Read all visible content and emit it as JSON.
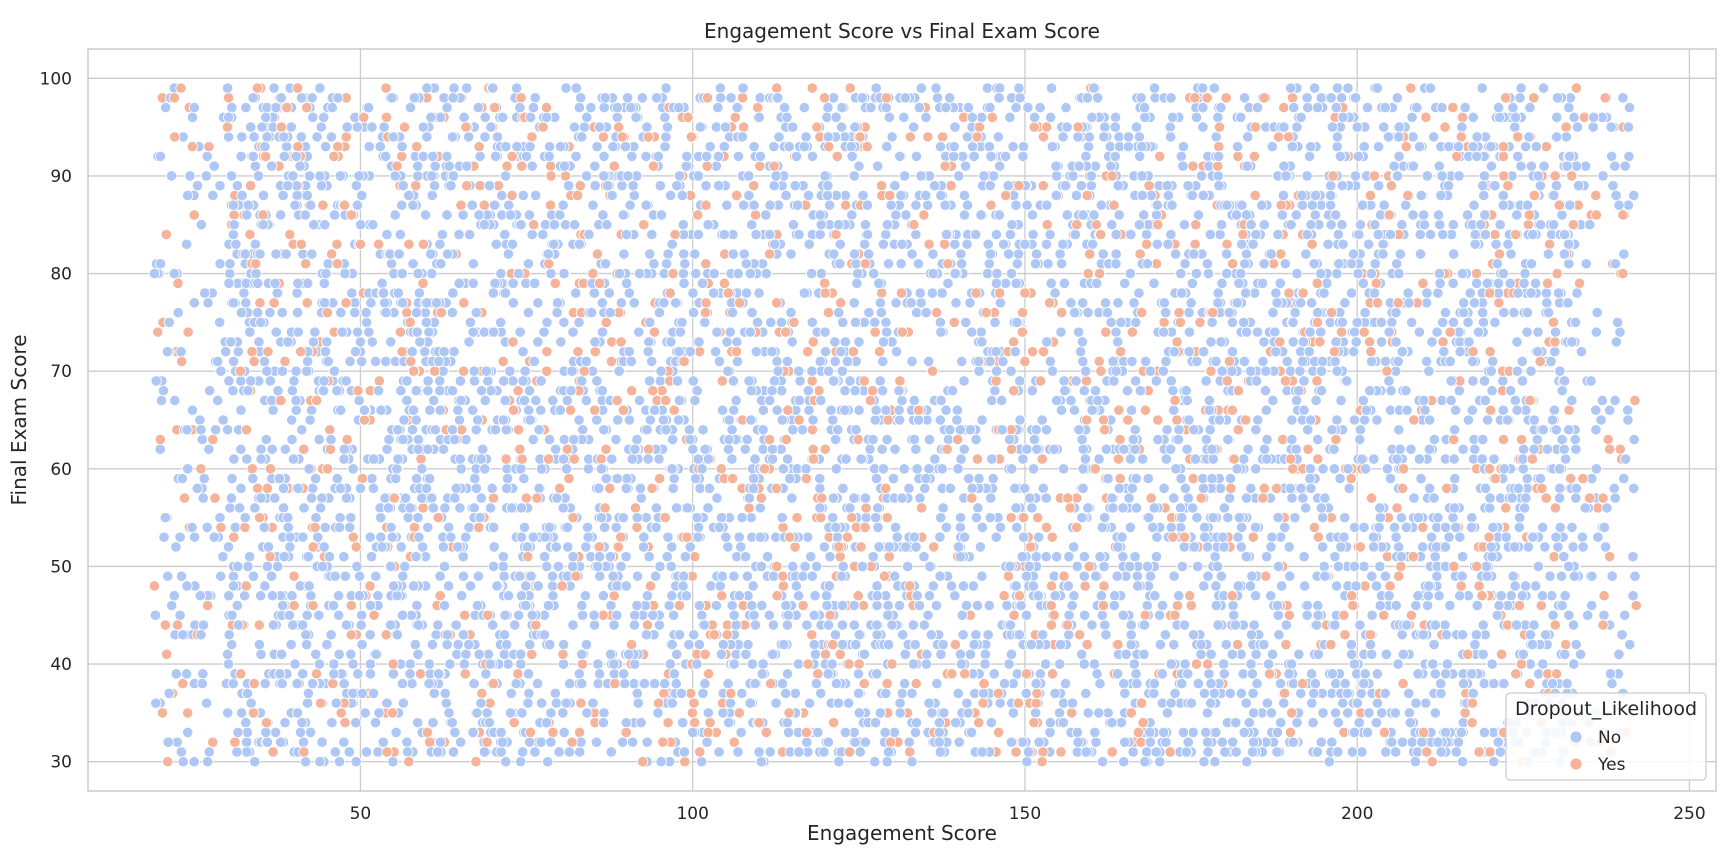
{
  "chart_data": {
    "type": "scatter",
    "title": "Engagement Score vs Final Exam Score",
    "xlabel": "Engagement Score",
    "ylabel": "Final Exam Score",
    "xlim": [
      9,
      254
    ],
    "ylim": [
      27,
      103
    ],
    "x_ticks": [
      50,
      100,
      150,
      200,
      250
    ],
    "y_ticks": [
      30,
      40,
      50,
      60,
      70,
      80,
      90,
      100
    ],
    "grid": true,
    "legend": {
      "title": "Dropout_Likelihood",
      "placement": "bottom-right",
      "entries": [
        {
          "label": "No",
          "color": "#aec7f5"
        },
        {
          "label": "Yes",
          "color": "#f5b49a"
        }
      ]
    },
    "x_range_observed": [
      19,
      242
    ],
    "y_range_observed": [
      30,
      99
    ],
    "point_count_estimate": 9000,
    "series": [
      {
        "name": "No",
        "color": "#aec7f5",
        "points": [
          [
            19,
            80
          ],
          [
            21,
            49
          ],
          [
            22,
            47
          ],
          [
            23,
            72
          ],
          [
            24,
            88
          ],
          [
            24,
            60
          ],
          [
            24,
            33
          ],
          [
            25,
            97
          ],
          [
            25,
            77
          ],
          [
            26,
            64
          ],
          [
            26,
            43
          ],
          [
            27,
            30
          ],
          [
            28,
            91
          ],
          [
            28,
            53
          ],
          [
            29,
            70
          ],
          [
            30,
            99
          ],
          [
            30,
            41
          ],
          [
            31,
            85
          ],
          [
            32,
            62
          ],
          [
            33,
            37
          ],
          [
            34,
            94
          ],
          [
            35,
            75
          ],
          [
            36,
            50
          ],
          [
            37,
            99
          ],
          [
            38,
            32
          ],
          [
            40,
            69
          ],
          [
            42,
            88
          ],
          [
            44,
            56
          ],
          [
            46,
            40
          ],
          [
            48,
            95
          ],
          [
            50,
            73
          ],
          [
            52,
            61
          ],
          [
            54,
            36
          ],
          [
            56,
            84
          ],
          [
            58,
            48
          ],
          [
            60,
            99
          ],
          [
            62,
            66
          ],
          [
            64,
            31
          ],
          [
            66,
            91
          ],
          [
            68,
            55
          ],
          [
            70,
            78
          ],
          [
            72,
            42
          ],
          [
            74,
            97
          ],
          [
            76,
            63
          ],
          [
            78,
            34
          ],
          [
            80,
            86
          ],
          [
            82,
            51
          ],
          [
            84,
            71
          ],
          [
            86,
            39
          ],
          [
            88,
            93
          ],
          [
            90,
            58
          ],
          [
            92,
            80
          ],
          [
            94,
            45
          ],
          [
            96,
            99
          ],
          [
            98,
            67
          ],
          [
            100,
            33
          ],
          [
            102,
            89
          ],
          [
            104,
            54
          ],
          [
            106,
            76
          ],
          [
            108,
            41
          ],
          [
            110,
            96
          ],
          [
            112,
            62
          ],
          [
            114,
            37
          ],
          [
            116,
            84
          ],
          [
            118,
            49
          ],
          [
            120,
            72
          ],
          [
            122,
            30
          ],
          [
            124,
            92
          ],
          [
            126,
            57
          ],
          [
            128,
            79
          ],
          [
            130,
            44
          ],
          [
            132,
            98
          ],
          [
            134,
            65
          ],
          [
            136,
            35
          ],
          [
            138,
            87
          ],
          [
            140,
            52
          ],
          [
            142,
            74
          ],
          [
            144,
            40
          ],
          [
            146,
            94
          ],
          [
            148,
            60
          ],
          [
            150,
            83
          ],
          [
            152,
            47
          ],
          [
            154,
            99
          ],
          [
            156,
            68
          ],
          [
            158,
            32
          ],
          [
            160,
            90
          ],
          [
            162,
            55
          ],
          [
            164,
            77
          ],
          [
            166,
            43
          ],
          [
            168,
            97
          ],
          [
            170,
            63
          ],
          [
            172,
            36
          ],
          [
            174,
            85
          ],
          [
            176,
            50
          ],
          [
            178,
            73
          ],
          [
            180,
            39
          ],
          [
            182,
            93
          ],
          [
            184,
            58
          ],
          [
            186,
            81
          ],
          [
            188,
            46
          ],
          [
            190,
            99
          ],
          [
            192,
            66
          ],
          [
            194,
            31
          ],
          [
            196,
            88
          ],
          [
            198,
            53
          ],
          [
            200,
            75
          ],
          [
            202,
            42
          ],
          [
            204,
            95
          ],
          [
            206,
            61
          ],
          [
            208,
            34
          ],
          [
            210,
            86
          ],
          [
            212,
            49
          ],
          [
            214,
            71
          ],
          [
            216,
            38
          ],
          [
            218,
            92
          ],
          [
            220,
            57
          ],
          [
            222,
            80
          ],
          [
            224,
            44
          ],
          [
            226,
            97
          ],
          [
            228,
            64
          ],
          [
            230,
            33
          ],
          [
            232,
            87
          ],
          [
            234,
            52
          ],
          [
            235,
            85
          ],
          [
            236,
            74
          ],
          [
            237,
            90
          ],
          [
            238,
            66
          ],
          [
            238,
            44
          ],
          [
            239,
            73
          ],
          [
            240,
            37
          ],
          [
            240,
            98
          ]
        ]
      },
      {
        "name": "Yes",
        "color": "#f5b49a",
        "points": [
          [
            19,
            48
          ],
          [
            21,
            30
          ],
          [
            22,
            98
          ],
          [
            23,
            99
          ],
          [
            24,
            35
          ],
          [
            25,
            86
          ],
          [
            26,
            60
          ],
          [
            27,
            46
          ],
          [
            29,
            54
          ],
          [
            30,
            95
          ],
          [
            32,
            39
          ],
          [
            34,
            71
          ],
          [
            36,
            58
          ],
          [
            38,
            67
          ],
          [
            40,
            49
          ],
          [
            42,
            77
          ],
          [
            44,
            36
          ],
          [
            46,
            92
          ],
          [
            48,
            63
          ],
          [
            50,
            83
          ],
          [
            54,
            31
          ],
          [
            58,
            70
          ],
          [
            62,
            47
          ],
          [
            66,
            89
          ],
          [
            70,
            38
          ],
          [
            74,
            62
          ],
          [
            78,
            97
          ],
          [
            82,
            55
          ],
          [
            86,
            79
          ],
          [
            90,
            33
          ],
          [
            94,
            68
          ],
          [
            98,
            46
          ],
          [
            102,
            87
          ],
          [
            106,
            59
          ],
          [
            110,
            34
          ],
          [
            114,
            74
          ],
          [
            118,
            99
          ],
          [
            122,
            52
          ],
          [
            126,
            81
          ],
          [
            130,
            40
          ],
          [
            134,
            66
          ],
          [
            138,
            91
          ],
          [
            142,
            57
          ],
          [
            146,
            37
          ],
          [
            150,
            78
          ],
          [
            154,
            48
          ],
          [
            158,
            95
          ],
          [
            162,
            64
          ],
          [
            166,
            35
          ],
          [
            170,
            85
          ],
          [
            174,
            53
          ],
          [
            178,
            70
          ],
          [
            182,
            42
          ],
          [
            186,
            98
          ],
          [
            190,
            61
          ],
          [
            194,
            79
          ],
          [
            198,
            45
          ],
          [
            202,
            88
          ],
          [
            206,
            56
          ],
          [
            210,
            33
          ],
          [
            214,
            74
          ],
          [
            218,
            50
          ],
          [
            222,
            93
          ],
          [
            226,
            67
          ],
          [
            230,
            39
          ],
          [
            233,
            99
          ],
          [
            235,
            57
          ],
          [
            236,
            86
          ],
          [
            237,
            44
          ],
          [
            238,
            62
          ],
          [
            238,
            51
          ],
          [
            240,
            80
          ],
          [
            242,
            46
          ]
        ]
      }
    ]
  }
}
